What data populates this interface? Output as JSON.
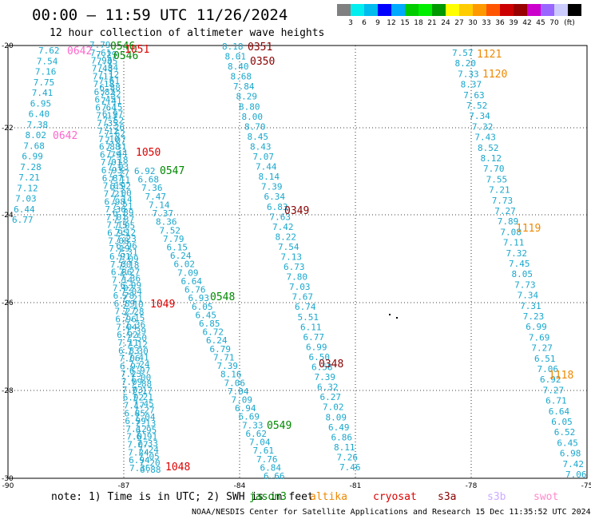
{
  "title": "00:00 – 11:59 UTC 11/26/2024",
  "subtitle": "12 hour collection of altimeter wave heights",
  "color_scale": {
    "colors": [
      "#808080",
      "#00eeee",
      "#00bbee",
      "#0000ff",
      "#00aaff",
      "#00cc00",
      "#00ee00",
      "#009900",
      "#ffff00",
      "#ffcc00",
      "#ff9900",
      "#ff5500",
      "#cc0000",
      "#990000",
      "#cc00cc",
      "#9966ff",
      "#ccccff",
      "#000000"
    ],
    "labels": [
      "3",
      "6",
      "9",
      "12",
      "15",
      "18",
      "21",
      "24",
      "27",
      "30",
      "33",
      "36",
      "39",
      "42",
      "45",
      "70",
      "(ft)"
    ]
  },
  "y_ticks": [
    "-20",
    "-22",
    "-24",
    "-26",
    "-28",
    "-30"
  ],
  "x_ticks": [
    "-90",
    "-87",
    "-84",
    "-81",
    "-78",
    "-75"
  ],
  "tracks": [
    {
      "name": "track-a",
      "color": "#1aa7cc",
      "values": [
        "7.62",
        "7.54",
        "7.16",
        "7.75",
        "7.41",
        "6.95",
        "6.40",
        "7.38",
        "8.02",
        "7.68",
        "6.99",
        "7.28",
        "7.21",
        "7.12",
        "7.03",
        "6.44",
        "6.77"
      ]
    },
    {
      "name": "track-b",
      "color": "#1aa7cc",
      "values": [
        "7.79",
        "7.61",
        "7.93",
        "7.48",
        "7.11",
        "7.18",
        "6.82",
        "6.45",
        "6.64",
        "7.13",
        "7.35",
        "7.12",
        "7.10",
        "6.88",
        "6.79",
        "7.01",
        "6.93",
        "6.87",
        "7.05",
        "7.21",
        "6.98",
        "7.36",
        "7.01",
        "7.15",
        "6.95",
        "7.08",
        "7.19",
        "6.91",
        "7.00",
        "6.86",
        "7.14",
        "7.02",
        "6.78",
        "6.89",
        "7.27",
        "6.96",
        "7.04",
        "6.92",
        "7.11",
        "6.83",
        "7.06",
        "6.97",
        "7.23",
        "7.09",
        "7.03",
        "6.92",
        "7.17",
        "6.85",
        "6.99",
        "7.12",
        "7.01",
        "7.07",
        "7.24",
        "6.94",
        "7.36"
      ]
    },
    {
      "name": "track-c",
      "color": "#1aa7cc",
      "values": [
        "7.29",
        "7.05",
        "7.34",
        "7.12",
        "7.61",
        "6.88",
        "7.32",
        "7.41",
        "7.15",
        "6.97",
        "7.52",
        "7.26",
        "7.62",
        "7.07",
        "7.31",
        "7.44",
        "7.18",
        "7.03",
        "7.27",
        "7.11",
        "6.92",
        "7.00",
        "7.14",
        "7.21",
        "6.89",
        "7.37",
        "7.05",
        "7.12",
        "7.23",
        "6.96",
        "7.31",
        "7.09",
        "7.18",
        "7.27",
        "7.36",
        "6.99",
        "7.04",
        "7.21",
        "7.10",
        "7.28",
        "7.15",
        "7.36",
        "7.39",
        "7.50",
        "7.12",
        "7.30",
        "7.41",
        "7.24",
        "6.97",
        "7.00",
        "7.88",
        "7.17",
        "7.21",
        "7.45",
        "7.27",
        "7.04",
        "7.13",
        "6.95",
        "6.91",
        "7.33",
        "7.24",
        "7.05",
        "7.20",
        "6.88"
      ]
    },
    {
      "name": "track-d",
      "color": "#1aa7cc",
      "values": [
        "6.92",
        "6.68",
        "7.36",
        "7.47",
        "7.14",
        "7.37",
        "8.36",
        "7.52",
        "7.79",
        "6.15",
        "6.24",
        "6.02",
        "7.09",
        "6.64",
        "6.76",
        "6.93",
        "6.05",
        "6.45",
        "6.85",
        "6.72",
        "6.24",
        "6.79",
        "7.71",
        "7.39",
        "8.16",
        "7.06",
        "7.04",
        "7.09",
        "6.94",
        "6.69",
        "7.33",
        "6.62",
        "7.04",
        "7.61",
        "7.76",
        "6.84",
        "6.66"
      ]
    },
    {
      "name": "track-e",
      "color": "#1aa7cc",
      "values": [
        "8.18",
        "8.01",
        "8.40",
        "8.68",
        "7.84",
        "8.29",
        "8.80",
        "8.00",
        "8.70",
        "8.45",
        "8.43",
        "7.07",
        "7.44",
        "8.14",
        "7.39",
        "6.34",
        "6.83",
        "7.63",
        "7.42",
        "8.22",
        "7.54",
        "7.13",
        "6.73",
        "7.80",
        "7.03",
        "7.67",
        "6.74",
        "5.51",
        "6.11",
        "6.77",
        "6.99",
        "6.50",
        "6.58",
        "7.39",
        "6.32",
        "6.27",
        "7.02",
        "8.09",
        "6.49",
        "6.86",
        "8.11",
        "7.26",
        "7.46"
      ]
    },
    {
      "name": "track-f",
      "color": "#1aa7cc",
      "values": [
        "7.57",
        "8.20",
        "7.33",
        "8.37",
        "7.63",
        "7.52",
        "7.34",
        "7.32",
        "7.43",
        "8.52",
        "8.12",
        "7.70",
        "7.55",
        "7.21",
        "7.73",
        "7.27",
        "7.89",
        "7.08",
        "7.11",
        "7.32",
        "7.45",
        "8.05",
        "7.73",
        "7.34",
        "7.31",
        "7.23",
        "6.99",
        "7.69",
        "7.27",
        "6.51",
        "7.06",
        "6.92",
        "7.27",
        "6.71",
        "6.64",
        "6.05",
        "6.52",
        "6.45",
        "6.98",
        "7.42",
        "7.06"
      ]
    }
  ],
  "pass_labels": [
    {
      "text": "0642",
      "color": "#ff66cc"
    },
    {
      "text": "0642",
      "color": "#ff66cc"
    },
    {
      "text": "0546",
      "color": "#008800"
    },
    {
      "text": "0546",
      "color": "#008800"
    },
    {
      "text": "1051",
      "color": "#dd0000"
    },
    {
      "text": "1050",
      "color": "#dd0000"
    },
    {
      "text": "0547",
      "color": "#008800"
    },
    {
      "text": "1049",
      "color": "#dd0000"
    },
    {
      "text": "0548",
      "color": "#008800"
    },
    {
      "text": "0549",
      "color": "#008800"
    },
    {
      "text": "1048",
      "color": "#dd0000"
    },
    {
      "text": "0351",
      "color": "#880000"
    },
    {
      "text": "0350",
      "color": "#880000"
    },
    {
      "text": "0349",
      "color": "#880000"
    },
    {
      "text": "0348",
      "color": "#880000"
    },
    {
      "text": "1121",
      "color": "#ee8800"
    },
    {
      "text": "1120",
      "color": "#ee8800"
    },
    {
      "text": "1119",
      "color": "#ee8800"
    },
    {
      "text": "1118",
      "color": "#ee8800"
    }
  ],
  "note": "note: 1) Time is in UTC; 2) SWH is in feet",
  "legend": [
    {
      "name": "jason3",
      "text": "jason3",
      "color": "#008800"
    },
    {
      "name": "altika",
      "text": "altika",
      "color": "#ee8800"
    },
    {
      "name": "cryosat",
      "text": "cryosat",
      "color": "#dd0000"
    },
    {
      "name": "s3a",
      "text": "s3a",
      "color": "#880000"
    },
    {
      "name": "s3b",
      "text": "s3b",
      "color": "#ccaaff"
    },
    {
      "name": "swot",
      "text": "swot",
      "color": "#ff88cc"
    }
  ],
  "credit": "NOAA/NESDIS Center for Satellite Applications and Research   15 Dec 11:35:52 UTC 2024"
}
